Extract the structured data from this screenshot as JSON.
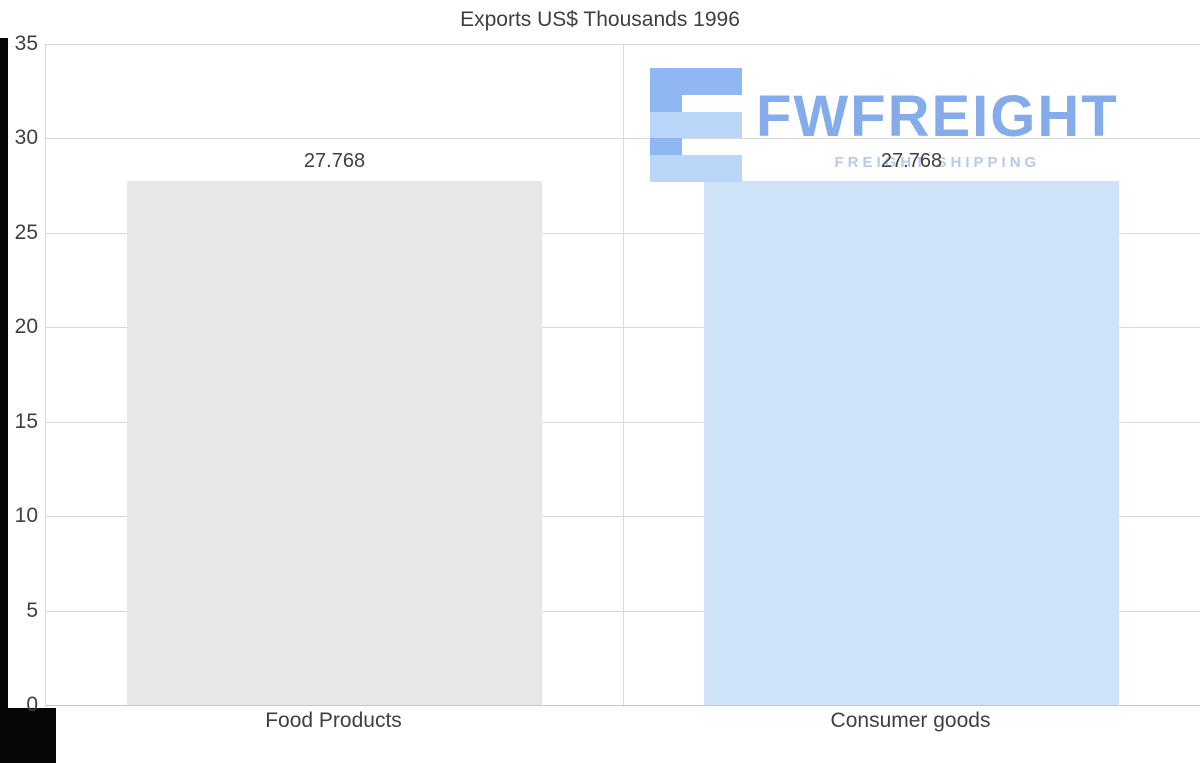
{
  "chart_data": {
    "type": "bar",
    "title": "Exports US$ Thousands 1996",
    "categories": [
      "Food Products",
      "Consumer goods"
    ],
    "values": [
      27.768,
      27.768
    ],
    "value_labels": [
      "27.768",
      "27.768"
    ],
    "ylim": [
      0,
      35
    ],
    "yticks": [
      0,
      5,
      10,
      15,
      20,
      25,
      30,
      35
    ],
    "grid": true,
    "legend": false,
    "bar_colors": [
      "#e7e7e7",
      "#cfe3f8"
    ],
    "xlabel": "",
    "ylabel": ""
  },
  "watermark": {
    "brand": "FWFREIGHT",
    "tagline": "FREIGHT SHIPPING",
    "brand_color": "#7ba6e9",
    "tagline_color": "#b0c5ed",
    "logo_dark": "#86b2f2",
    "logo_light": "#b5d3f8"
  },
  "colors": {
    "text": "#404040",
    "gridline": "#d9d9d9",
    "axis_line": "#c6c6c6",
    "frame": "#060606",
    "background": "#ffffff"
  }
}
